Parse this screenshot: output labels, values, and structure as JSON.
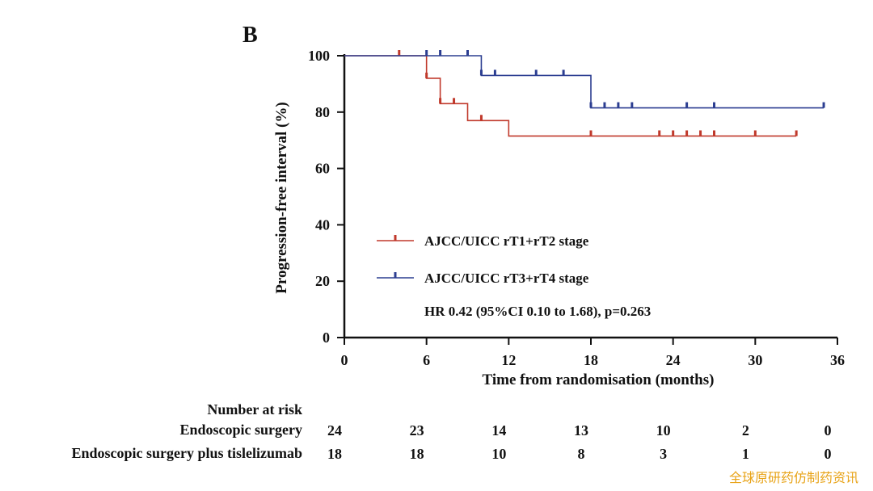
{
  "panel_letter": "B",
  "chart_data": {
    "type": "line",
    "subtype": "kaplan-meier",
    "xlabel": "Time from randomisation (months)",
    "ylabel": "Progression-free interval (%)",
    "xlim": [
      0,
      36
    ],
    "ylim": [
      0,
      100
    ],
    "xticks": [
      0,
      6,
      12,
      18,
      24,
      30,
      36
    ],
    "yticks": [
      0,
      20,
      40,
      60,
      80,
      100
    ],
    "grid": false,
    "legend_position": "lower-center",
    "annotation": "HR 0.42 (95%CI 0.10 to 1.68), p=0.263",
    "series": [
      {
        "name": "AJCC/UICC rT1+rT2 stage",
        "color": "#c0392b",
        "steps": [
          [
            0,
            100
          ],
          [
            6,
            92
          ],
          [
            7,
            83
          ],
          [
            9,
            77
          ],
          [
            12,
            71.5
          ],
          [
            33,
            71.5
          ]
        ],
        "censored": [
          [
            4,
            100
          ],
          [
            6,
            92
          ],
          [
            7,
            83
          ],
          [
            8,
            83
          ],
          [
            10,
            77
          ],
          [
            18,
            71.5
          ],
          [
            23,
            71.5
          ],
          [
            24,
            71.5
          ],
          [
            25,
            71.5
          ],
          [
            26,
            71.5
          ],
          [
            27,
            71.5
          ],
          [
            30,
            71.5
          ],
          [
            33,
            71.5
          ]
        ]
      },
      {
        "name": "AJCC/UICC rT3+rT4  stage",
        "color": "#2c3e91",
        "steps": [
          [
            0,
            100
          ],
          [
            10,
            93
          ],
          [
            18,
            81.5
          ],
          [
            35,
            81.5
          ]
        ],
        "censored": [
          [
            6,
            100
          ],
          [
            7,
            100
          ],
          [
            9,
            100
          ],
          [
            10,
            93
          ],
          [
            11,
            93
          ],
          [
            14,
            93
          ],
          [
            16,
            93
          ],
          [
            18,
            81.5
          ],
          [
            19,
            81.5
          ],
          [
            20,
            81.5
          ],
          [
            21,
            81.5
          ],
          [
            25,
            81.5
          ],
          [
            27,
            81.5
          ],
          [
            35,
            81.5
          ]
        ]
      }
    ]
  },
  "risk_table": {
    "title": "Number at risk",
    "times": [
      0,
      6,
      12,
      18,
      24,
      30,
      36
    ],
    "rows": [
      {
        "label": "Endoscopic surgery",
        "values": [
          "24",
          "23",
          "14",
          "13",
          "10",
          "2",
          "0"
        ]
      },
      {
        "label": "Endoscopic surgery plus tislelizumab",
        "values": [
          "18",
          "18",
          "10",
          "8",
          "3",
          "1",
          "0"
        ]
      }
    ]
  },
  "watermark": "全球原研药仿制药资讯"
}
